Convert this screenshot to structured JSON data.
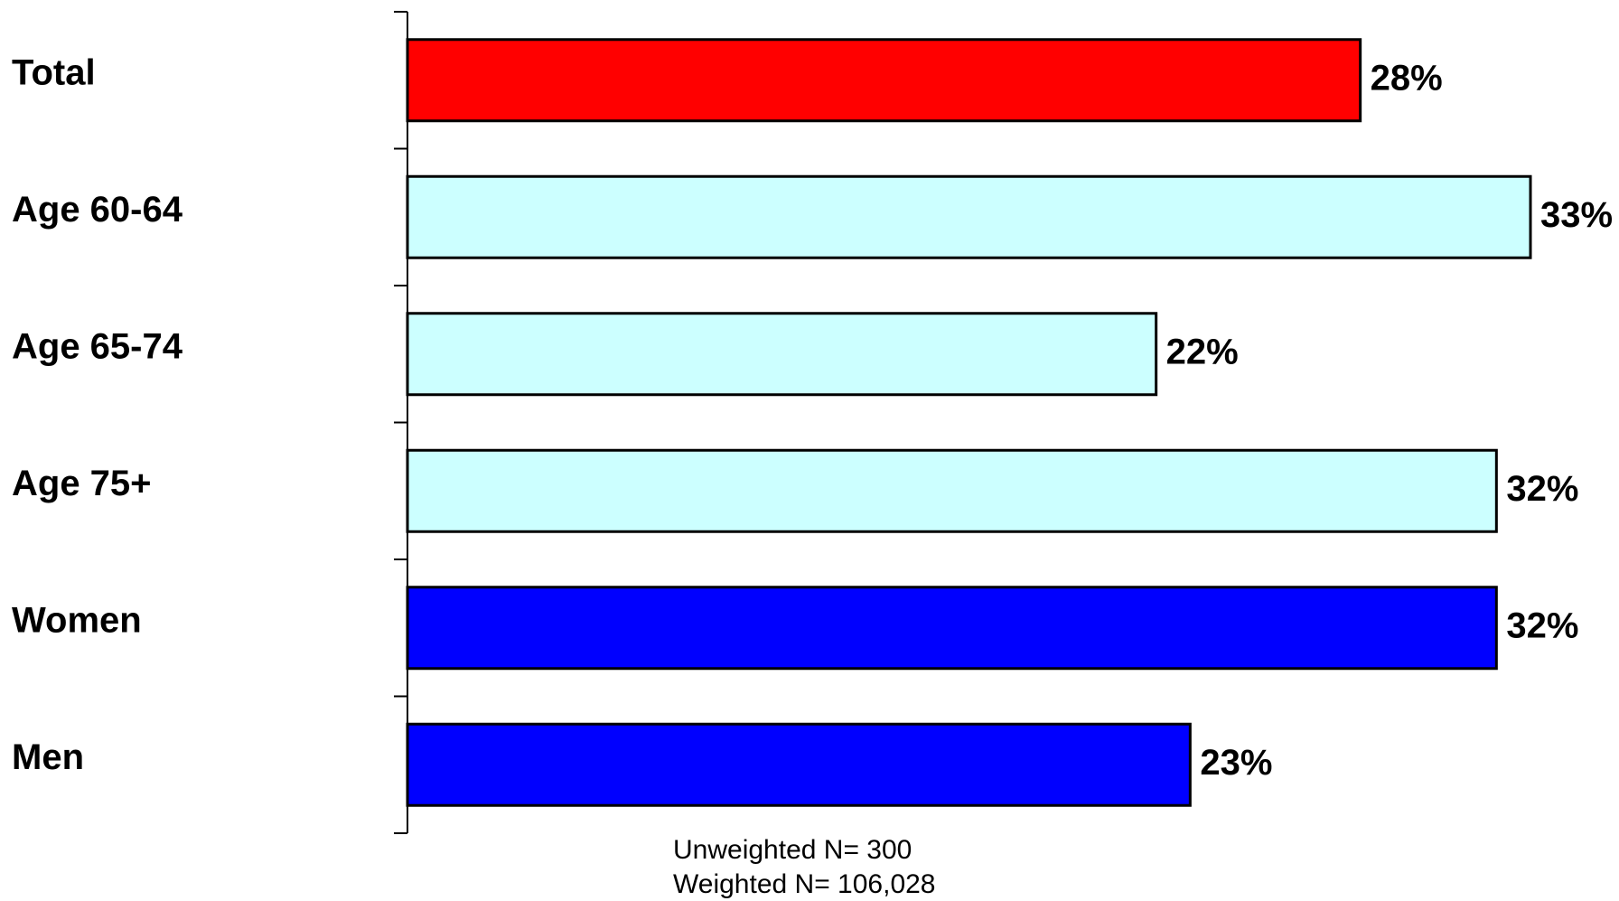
{
  "chart_data": {
    "type": "bar",
    "orientation": "horizontal",
    "categories": [
      "Total",
      "Age 60-64",
      "Age 65-74",
      "Age 75+",
      "Women",
      "Men"
    ],
    "values": [
      28,
      33,
      22,
      32,
      32,
      23
    ],
    "value_labels": [
      "28%",
      "33%",
      "22%",
      "32%",
      "32%",
      "23%"
    ],
    "colors": [
      "#ff0000",
      "#ccffff",
      "#ccffff",
      "#ccffff",
      "#0000ff",
      "#0000ff"
    ],
    "xlim": [
      0,
      33
    ],
    "grid": false,
    "legend": "none"
  },
  "notes": {
    "unweighted": "Unweighted N= 300",
    "weighted": "Weighted N= 106,028"
  }
}
